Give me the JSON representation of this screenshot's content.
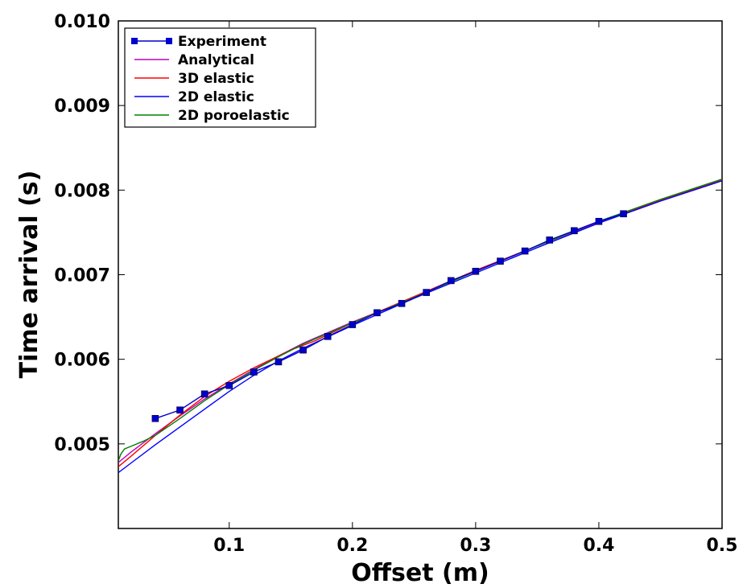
{
  "chart_data": {
    "type": "line",
    "xlabel": "Offset (m)",
    "ylabel": "Time arrival (s)",
    "xlim": [
      0.01,
      0.5
    ],
    "ylim": [
      0.004,
      0.01
    ],
    "xticks": [
      0.1,
      0.2,
      0.3,
      0.4,
      0.5
    ],
    "xtick_labels": [
      "0.1",
      "0.2",
      "0.3",
      "0.4",
      "0.5"
    ],
    "yticks": [
      0.005,
      0.006,
      0.007,
      0.008,
      0.009,
      0.01
    ],
    "ytick_labels": [
      "0.005",
      "0.006",
      "0.007",
      "0.008",
      "0.009",
      "0.010"
    ],
    "grid": false,
    "legend_position": "top-left",
    "series": [
      {
        "name": "Experiment",
        "color": "#0000cc",
        "marker": "square",
        "x": [
          0.04,
          0.06,
          0.08,
          0.1,
          0.12,
          0.14,
          0.16,
          0.18,
          0.2,
          0.22,
          0.24,
          0.26,
          0.28,
          0.3,
          0.32,
          0.34,
          0.36,
          0.38,
          0.4,
          0.42
        ],
        "y": [
          0.0053,
          0.0054,
          0.00559,
          0.00569,
          0.00585,
          0.00597,
          0.00611,
          0.00627,
          0.00641,
          0.00655,
          0.00666,
          0.00679,
          0.00693,
          0.00704,
          0.00716,
          0.00728,
          0.00741,
          0.00752,
          0.00763,
          0.00772
        ]
      },
      {
        "name": "Analytical",
        "color": "#bf00bf",
        "marker": "none",
        "x": [
          0.01,
          0.02,
          0.04,
          0.06,
          0.08,
          0.1,
          0.12,
          0.14,
          0.16,
          0.2,
          0.25,
          0.3,
          0.35,
          0.4,
          0.45,
          0.5
        ],
        "y": [
          0.00478,
          0.0049,
          0.00512,
          0.00533,
          0.00553,
          0.00571,
          0.00588,
          0.00604,
          0.00619,
          0.00644,
          0.00673,
          0.00705,
          0.00734,
          0.00762,
          0.00788,
          0.00812
        ]
      },
      {
        "name": "3D elastic",
        "color": "#ff0000",
        "marker": "none",
        "x": [
          0.01,
          0.02,
          0.04,
          0.06,
          0.08,
          0.1,
          0.12,
          0.15,
          0.17,
          0.2,
          0.25,
          0.3,
          0.35,
          0.4,
          0.45,
          0.5
        ],
        "y": [
          0.00473,
          0.00485,
          0.0051,
          0.00534,
          0.00556,
          0.00574,
          0.0059,
          0.00611,
          0.00622,
          0.00643,
          0.00674,
          0.00705,
          0.00734,
          0.00763,
          0.00788,
          0.00812
        ]
      },
      {
        "name": "2D elastic",
        "color": "#0000ff",
        "marker": "none",
        "x": [
          0.01,
          0.02,
          0.04,
          0.06,
          0.08,
          0.1,
          0.12,
          0.14,
          0.16,
          0.2,
          0.25,
          0.3,
          0.35,
          0.4,
          0.45,
          0.5
        ],
        "y": [
          0.00466,
          0.00477,
          0.00499,
          0.0052,
          0.00541,
          0.00562,
          0.00581,
          0.00598,
          0.00613,
          0.0064,
          0.00672,
          0.00702,
          0.00732,
          0.00761,
          0.00787,
          0.00811
        ]
      },
      {
        "name": "2D poroelastic",
        "color": "#008000",
        "marker": "none",
        "x": [
          0.01,
          0.012,
          0.015,
          0.02,
          0.03,
          0.04,
          0.06,
          0.08,
          0.1,
          0.12,
          0.14,
          0.16,
          0.2,
          0.25,
          0.3,
          0.35,
          0.4,
          0.45,
          0.5
        ],
        "y": [
          0.0048,
          0.00488,
          0.00494,
          0.00497,
          0.00503,
          0.0051,
          0.0053,
          0.00551,
          0.0057,
          0.00587,
          0.00603,
          0.00618,
          0.00643,
          0.00673,
          0.00704,
          0.00734,
          0.00763,
          0.00789,
          0.00813
        ]
      }
    ]
  }
}
